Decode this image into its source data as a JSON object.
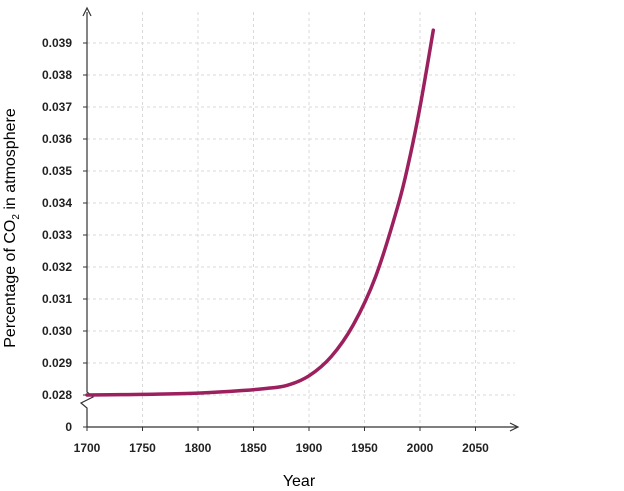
{
  "chart_data": {
    "type": "line",
    "title": "",
    "xlabel": "Year",
    "ylabel": {
      "prefix": "Percentage of CO",
      "subscript": "2",
      "suffix": " in atmosphere"
    },
    "x_ticks": [
      "1700",
      "1750",
      "1800",
      "1850",
      "1900",
      "1950",
      "2000",
      "2050"
    ],
    "y_ticks": [
      "0.028",
      "0.029",
      "0.030",
      "0.031",
      "0.032",
      "0.033",
      "0.034",
      "0.035",
      "0.036",
      "0.037",
      "0.038",
      "0.039"
    ],
    "y_zero_label": "0",
    "y_axis_break": true,
    "xlim": [
      1700,
      2080
    ],
    "ylim": [
      0.0275,
      0.0399
    ],
    "grid": true,
    "line_color": "#9c1f5e",
    "grid_color": "#d9d9d9",
    "series": [
      {
        "x": [
          1700,
          1750,
          1800,
          1840,
          1860,
          1880,
          1900,
          1920,
          1940,
          1960,
          1980,
          1990,
          2000,
          2012
        ],
        "y": [
          0.028,
          0.02802,
          0.02806,
          0.02814,
          0.0282,
          0.0283,
          0.0286,
          0.0292,
          0.0302,
          0.0317,
          0.0339,
          0.0353,
          0.037,
          0.0394
        ]
      }
    ]
  }
}
